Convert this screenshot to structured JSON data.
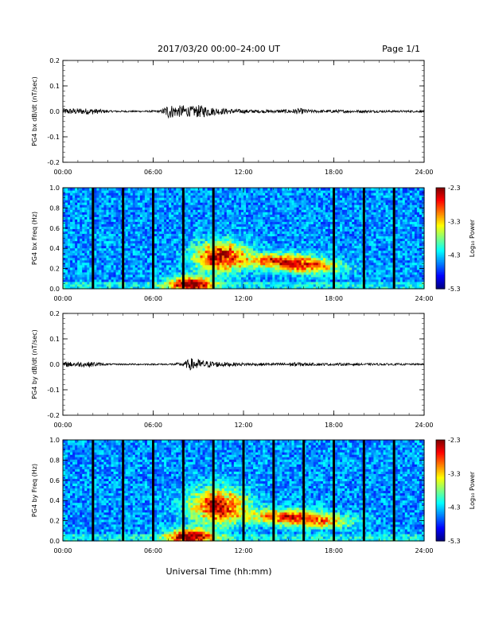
{
  "header": {
    "date_range": "2017/03/20  00:00–24:00 UT",
    "page": "Page 1/1"
  },
  "footer": {
    "xlabel": "Universal Time (hh:mm)"
  },
  "chart_data": [
    {
      "type": "line",
      "ylabel": "PG4 bx dB/dt (nT/sec)",
      "xlim": [
        0,
        24
      ],
      "ylim": [
        -0.2,
        0.2
      ],
      "yticks": [
        "0.2",
        "0.1",
        "0.0",
        "-0.1",
        "-0.2"
      ],
      "xticks": [
        "00:00",
        "06:00",
        "12:00",
        "18:00",
        "24:00"
      ],
      "color": "#000000",
      "envelope": {
        "x": [
          0,
          1,
          2,
          3,
          5,
          6.5,
          7,
          7.5,
          8,
          8.5,
          9,
          9.5,
          10,
          11,
          12,
          13,
          14,
          15,
          15.8,
          16.5,
          18,
          20,
          22,
          24
        ],
        "amp": [
          0.012,
          0.012,
          0.012,
          0.004,
          0.003,
          0.004,
          0.03,
          0.022,
          0.025,
          0.02,
          0.025,
          0.022,
          0.015,
          0.01,
          0.008,
          0.006,
          0.006,
          0.008,
          0.012,
          0.006,
          0.006,
          0.005,
          0.004,
          0.004
        ]
      }
    },
    {
      "type": "heatmap",
      "ylabel": "PG4 bx Freq (Hz)",
      "xlim": [
        0,
        24
      ],
      "ylim": [
        0.0,
        1.0
      ],
      "yticks": [
        "1.0",
        "0.8",
        "0.6",
        "0.4",
        "0.2",
        "0.0"
      ],
      "xticks": [
        "00:00",
        "06:00",
        "12:00",
        "18:00",
        "24:00"
      ],
      "colorbar": {
        "label": "Log₁₀ Power",
        "ticks": [
          "-2.3",
          "-3.3",
          "-4.3",
          "-5.3"
        ],
        "range": [
          -5.3,
          -2.3
        ]
      },
      "gaps_hours": [
        2,
        4,
        6,
        8,
        10,
        18,
        20,
        22
      ],
      "features": [
        {
          "x": 10.5,
          "f": 0.32,
          "sx": 1.2,
          "sf": 0.1,
          "amp": 1.6
        },
        {
          "x": 8.5,
          "f": 0.05,
          "sx": 1.0,
          "sf": 0.05,
          "amp": 1.7
        },
        {
          "x": 14.5,
          "f": 0.28,
          "sx": 1.5,
          "sf": 0.05,
          "amp": 1.3
        },
        {
          "x": 16.5,
          "f": 0.22,
          "sx": 1.5,
          "sf": 0.05,
          "amp": 1.1
        }
      ]
    },
    {
      "type": "line",
      "ylabel": "PG4 by dB/dt (nT/sec)",
      "xlim": [
        0,
        24
      ],
      "ylim": [
        -0.2,
        0.2
      ],
      "yticks": [
        "0.2",
        "0.1",
        "0.0",
        "-0.1",
        "-0.2"
      ],
      "xticks": [
        "00:00",
        "06:00",
        "12:00",
        "18:00",
        "24:00"
      ],
      "color": "#000000",
      "envelope": {
        "x": [
          0,
          1,
          2,
          3,
          5,
          7,
          8,
          8.5,
          9,
          9.5,
          10,
          11,
          12,
          14,
          15.5,
          16.5,
          18,
          20,
          22,
          24
        ],
        "amp": [
          0.01,
          0.01,
          0.01,
          0.003,
          0.003,
          0.003,
          0.008,
          0.025,
          0.02,
          0.014,
          0.012,
          0.008,
          0.006,
          0.005,
          0.009,
          0.005,
          0.005,
          0.004,
          0.004,
          0.003
        ]
      }
    },
    {
      "type": "heatmap",
      "ylabel": "PG4 by Freq (Hz)",
      "xlim": [
        0,
        24
      ],
      "ylim": [
        0.0,
        1.0
      ],
      "yticks": [
        "1.0",
        "0.8",
        "0.6",
        "0.4",
        "0.2",
        "0.0"
      ],
      "xticks": [
        "00:00",
        "06:00",
        "12:00",
        "18:00",
        "24:00"
      ],
      "colorbar": {
        "label": "Log₁₀ Power",
        "ticks": [
          "-2.3",
          "-3.3",
          "-4.3",
          "-5.3"
        ],
        "range": [
          -5.3,
          -2.3
        ]
      },
      "gaps_hours": [
        2,
        4,
        6,
        8,
        10,
        12,
        14,
        16,
        18,
        20,
        22
      ],
      "features": [
        {
          "x": 10.3,
          "f": 0.35,
          "sx": 1.3,
          "sf": 0.12,
          "amp": 1.5
        },
        {
          "x": 8.5,
          "f": 0.05,
          "sx": 1.0,
          "sf": 0.05,
          "amp": 1.8
        },
        {
          "x": 14.5,
          "f": 0.25,
          "sx": 1.6,
          "sf": 0.05,
          "amp": 1.2
        },
        {
          "x": 17.0,
          "f": 0.2,
          "sx": 1.6,
          "sf": 0.05,
          "amp": 1.0
        }
      ]
    }
  ]
}
